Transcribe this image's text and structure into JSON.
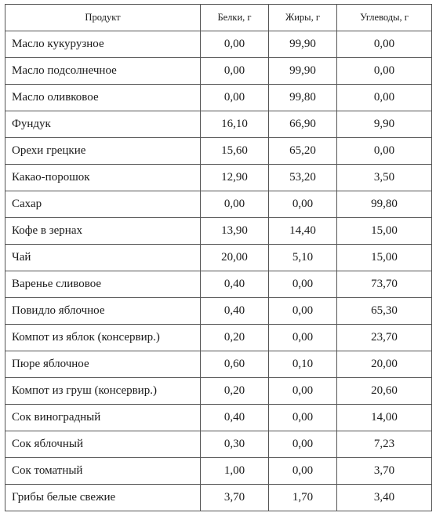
{
  "table": {
    "headers": [
      "Продукт",
      "Белки, г",
      "Жиры, г",
      "Углеводы, г"
    ],
    "rows": [
      [
        "Масло кукурузное",
        "0,00",
        "99,90",
        "0,00"
      ],
      [
        "Масло подсолнечное",
        "0,00",
        "99,90",
        "0,00"
      ],
      [
        "Масло оливковое",
        "0,00",
        "99,80",
        "0,00"
      ],
      [
        "Фундук",
        "16,10",
        "66,90",
        "9,90"
      ],
      [
        "Орехи грецкие",
        "15,60",
        "65,20",
        "0,00"
      ],
      [
        "Какао-порошок",
        "12,90",
        "53,20",
        "3,50"
      ],
      [
        "Сахар",
        "0,00",
        "0,00",
        "99,80"
      ],
      [
        "Кофе в зернах",
        "13,90",
        "14,40",
        "15,00"
      ],
      [
        "Чай",
        "20,00",
        "5,10",
        "15,00"
      ],
      [
        "Варенье сливовое",
        "0,40",
        "0,00",
        "73,70"
      ],
      [
        "Повидло яблочное",
        "0,40",
        "0,00",
        "65,30"
      ],
      [
        "Компот из яблок (консервир.)",
        "0,20",
        "0,00",
        "23,70"
      ],
      [
        "Пюре яблочное",
        "0,60",
        "0,10",
        "20,00"
      ],
      [
        "Компот из груш (консервир.)",
        "0,20",
        "0,00",
        "20,60"
      ],
      [
        "Сок виноградный",
        "0,40",
        "0,00",
        "14,00"
      ],
      [
        "Сок яблочный",
        "0,30",
        "0,00",
        "7,23"
      ],
      [
        "Сок томатный",
        "1,00",
        "0,00",
        "3,70"
      ],
      [
        "Грибы белые свежие",
        "3,70",
        "1,70",
        "3,40"
      ]
    ]
  }
}
